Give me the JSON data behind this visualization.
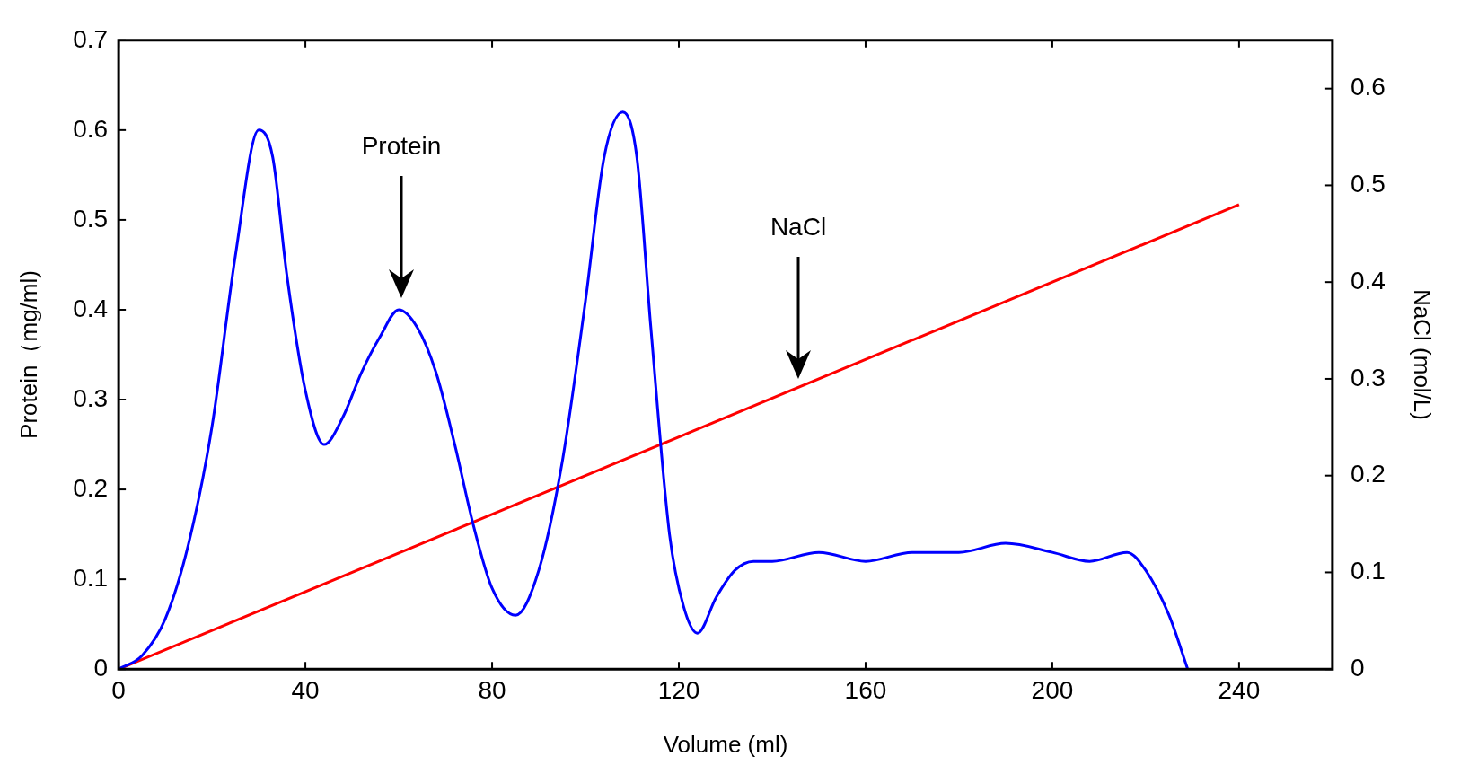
{
  "chart_data": {
    "type": "line",
    "xlabel": "Volume (ml)",
    "ylabel": "Protein（mg/ml)",
    "y2label": "NaCl (mol/L)",
    "xlim": [
      0,
      260
    ],
    "xticks": [
      0,
      40,
      80,
      120,
      160,
      200,
      240
    ],
    "ylim": [
      0,
      0.7
    ],
    "yticks": [
      0,
      0.1,
      0.2,
      0.3,
      0.4,
      0.5,
      0.6,
      0.7
    ],
    "y2lim": [
      0,
      0.65
    ],
    "y2ticks": [
      0,
      0.1,
      0.2,
      0.3,
      0.4,
      0.5,
      0.6
    ],
    "grid": false,
    "legend": false,
    "marker": "none",
    "line_style": "solid",
    "series": [
      {
        "color": "#0000ff",
        "x": [
          0,
          5,
          10,
          15,
          20,
          25,
          30,
          33,
          36,
          40,
          44,
          48,
          52,
          56,
          60,
          64,
          68,
          72,
          76,
          80,
          85,
          90,
          95,
          100,
          104,
          108,
          111,
          114,
          118,
          121,
          124,
          128,
          132,
          136,
          140,
          150,
          160,
          170,
          180,
          190,
          200,
          208,
          216,
          220,
          225,
          229
        ],
        "values": [
          0,
          0.015,
          0.056,
          0.14,
          0.27,
          0.46,
          0.6,
          0.57,
          0.44,
          0.31,
          0.25,
          0.28,
          0.33,
          0.37,
          0.4,
          0.38,
          0.33,
          0.25,
          0.16,
          0.09,
          0.06,
          0.11,
          0.23,
          0.41,
          0.57,
          0.62,
          0.57,
          0.38,
          0.15,
          0.07,
          0.04,
          0.08,
          0.11,
          0.12,
          0.12,
          0.13,
          0.12,
          0.13,
          0.13,
          0.14,
          0.13,
          0.12,
          0.13,
          0.11,
          0.06,
          0
        ]
      },
      {
        "color": "#ff0000",
        "axis": "y2",
        "x": [
          0,
          240
        ],
        "values": [
          0,
          0.48
        ]
      }
    ],
    "annotations": [
      "Protein",
      "NaCl"
    ]
  }
}
